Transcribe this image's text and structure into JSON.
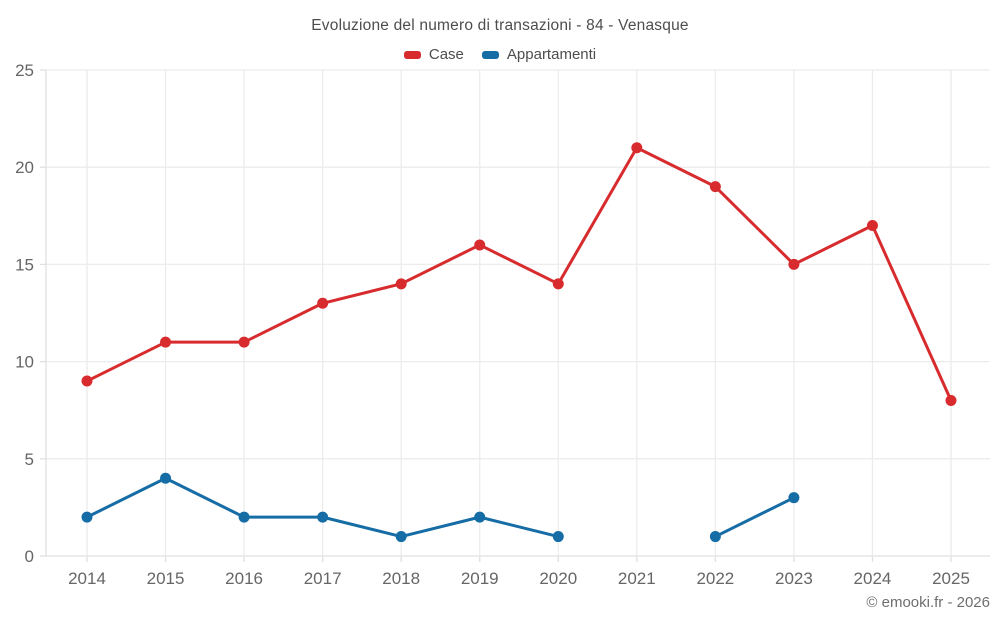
{
  "chart": {
    "title": "Evoluzione del numero di transazioni - 84 - Venasque",
    "copyright": "© emooki.fr - 2026"
  },
  "legend": {
    "items": [
      {
        "label": "Case",
        "color": "#d72b2e"
      },
      {
        "label": "Appartamenti",
        "color": "#166da6"
      }
    ]
  },
  "chart_data": {
    "type": "line",
    "title": "Evoluzione del numero di transazioni - 84 - Venasque",
    "categories": [
      "2014",
      "2015",
      "2016",
      "2017",
      "2018",
      "2019",
      "2020",
      "2021",
      "2022",
      "2023",
      "2024",
      "2025"
    ],
    "series": [
      {
        "name": "Case",
        "color": "#d72b2e",
        "values": [
          9,
          11,
          11,
          13,
          14,
          16,
          14,
          21,
          19,
          15,
          17,
          8
        ]
      },
      {
        "name": "Appartamenti",
        "color": "#166da6",
        "values": [
          2,
          4,
          2,
          2,
          1,
          2,
          1,
          null,
          1,
          3,
          null,
          null
        ]
      }
    ],
    "xlabel": "",
    "ylabel": "",
    "ylim": [
      0,
      25
    ],
    "yticks": [
      0,
      5,
      10,
      15,
      20,
      25
    ],
    "grid": true,
    "legend_position": "top",
    "colors": {
      "grid_line": "#ececec",
      "axis_line": "#e0e0e0",
      "tick": "#e0e0e0",
      "axis_label": "#666666",
      "background": "#ffffff"
    }
  }
}
